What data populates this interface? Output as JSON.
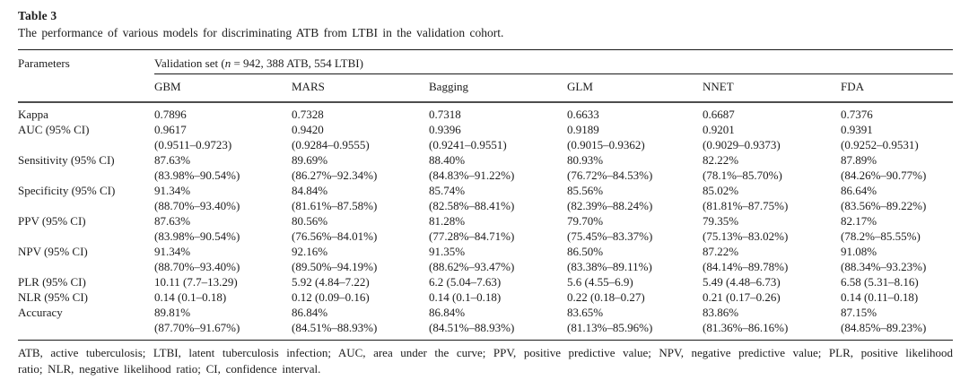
{
  "caption": {
    "label": "Table 3",
    "text": "The performance of various models for discriminating ATB from LTBI in the validation cohort."
  },
  "table": {
    "param_header": "Parameters",
    "span_header": {
      "pre": "Validation set (",
      "italic": "n",
      "post": " = 942, 388 ATB, 554 LTBI)"
    },
    "model_headers": [
      "GBM",
      "MARS",
      "Bagging",
      "GLM",
      "NNET",
      "FDA"
    ],
    "rows": [
      {
        "param": "Kappa",
        "line1": [
          "0.7896",
          "0.7328",
          "0.7318",
          "0.6633",
          "0.6687",
          "0.7376"
        ]
      },
      {
        "param": "AUC (95% CI)",
        "line1": [
          "0.9617",
          "0.9420",
          "0.9396",
          "0.9189",
          "0.9201",
          "0.9391"
        ],
        "line2": [
          "(0.9511–0.9723)",
          "(0.9284–0.9555)",
          "(0.9241–0.9551)",
          "(0.9015–0.9362)",
          "(0.9029–0.9373)",
          "(0.9252–0.9531)"
        ]
      },
      {
        "param": "Sensitivity (95% CI)",
        "line1": [
          "87.63%",
          "89.69%",
          "88.40%",
          "80.93%",
          "82.22%",
          "87.89%"
        ],
        "line2": [
          "(83.98%–90.54%)",
          "(86.27%–92.34%)",
          "(84.83%–91.22%)",
          "(76.72%–84.53%)",
          "(78.1%–85.70%)",
          "(84.26%–90.77%)"
        ]
      },
      {
        "param": "Specificity (95% CI)",
        "line1": [
          "91.34%",
          "84.84%",
          "85.74%",
          "85.56%",
          "85.02%",
          "86.64%"
        ],
        "line2": [
          "(88.70%–93.40%)",
          "(81.61%–87.58%)",
          "(82.58%–88.41%)",
          "(82.39%–88.24%)",
          "(81.81%–87.75%)",
          "(83.56%–89.22%)"
        ]
      },
      {
        "param": "PPV (95% CI)",
        "line1": [
          "87.63%",
          "80.56%",
          "81.28%",
          "79.70%",
          "79.35%",
          "82.17%"
        ],
        "line2": [
          "(83.98%–90.54%)",
          "(76.56%–84.01%)",
          "(77.28%–84.71%)",
          "(75.45%–83.37%)",
          "(75.13%–83.02%)",
          "(78.2%–85.55%)"
        ]
      },
      {
        "param": "NPV (95% CI)",
        "line1": [
          "91.34%",
          "92.16%",
          "91.35%",
          "86.50%",
          "87.22%",
          "91.08%"
        ],
        "line2": [
          "(88.70%–93.40%)",
          "(89.50%–94.19%)",
          "(88.62%–93.47%)",
          "(83.38%–89.11%)",
          "(84.14%–89.78%)",
          "(88.34%–93.23%)"
        ]
      },
      {
        "param": "PLR (95% CI)",
        "line1": [
          "10.11 (7.7–13.29)",
          "5.92 (4.84–7.22)",
          "6.2 (5.04–7.63)",
          "5.6 (4.55–6.9)",
          "5.49 (4.48–6.73)",
          "6.58 (5.31–8.16)"
        ]
      },
      {
        "param": "NLR (95% CI)",
        "line1": [
          "0.14 (0.1–0.18)",
          "0.12 (0.09–0.16)",
          "0.14 (0.1–0.18)",
          "0.22 (0.18–0.27)",
          "0.21 (0.17–0.26)",
          "0.14 (0.11–0.18)"
        ]
      },
      {
        "param": "Accuracy",
        "line1": [
          "89.81%",
          "86.84%",
          "86.84%",
          "83.65%",
          "83.86%",
          "87.15%"
        ],
        "line2": [
          "(87.70%–91.67%)",
          "(84.51%–88.93%)",
          "(84.51%–88.93%)",
          "(81.13%–85.96%)",
          "(81.36%–86.16%)",
          "(84.85%–89.23%)"
        ]
      }
    ]
  },
  "footnote": {
    "line1": "ATB, active tuberculosis; LTBI, latent tuberculosis infection; AUC, area under the curve; PPV, positive predictive value; NPV, negative predictive value; PLR, positive likelihood",
    "line2": "ratio; NLR, negative likelihood ratio; CI, confidence interval."
  }
}
